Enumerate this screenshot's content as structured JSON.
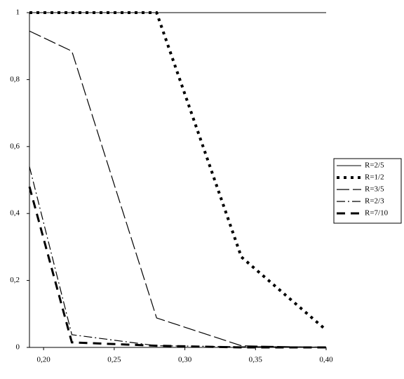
{
  "chart_data": {
    "type": "line",
    "x": [
      0.19,
      0.22,
      0.28,
      0.34,
      0.4
    ],
    "series": [
      {
        "name": "R=2/5",
        "color": "#000000",
        "line_style": "solid",
        "values": [
          1,
          1,
          1,
          1,
          1
        ]
      },
      {
        "name": "R=1/2",
        "color": "#000000",
        "line_style": "dotted",
        "values": [
          1,
          1,
          1,
          0.27,
          0.052
        ]
      },
      {
        "name": "R=3/5",
        "color": "#000000",
        "line_style": "dashed",
        "values": [
          0.945,
          0.885,
          0.088,
          0.005,
          0
        ]
      },
      {
        "name": "R=2/3",
        "color": "#000000",
        "line_style": "dashdot",
        "values": [
          0.54,
          0.038,
          0.005,
          0.002,
          0.001
        ]
      },
      {
        "name": "R=7/10",
        "color": "#000000",
        "line_style": "thickdash",
        "values": [
          0.48,
          0.015,
          0.005,
          0,
          0
        ]
      }
    ],
    "xlim": [
      0.19,
      0.4
    ],
    "ylim": [
      0,
      1
    ],
    "xticks": [
      {
        "value": 0.2,
        "label": "0,20"
      },
      {
        "value": 0.25,
        "label": "0,25"
      },
      {
        "value": 0.3,
        "label": "0,30"
      },
      {
        "value": 0.35,
        "label": "0,35"
      },
      {
        "value": 0.4,
        "label": "0,40"
      }
    ],
    "yticks": [
      0,
      {
        "value": 0.2,
        "label": "0,2"
      },
      {
        "value": 0.4,
        "label": "0,4"
      },
      {
        "value": 0.6,
        "label": "0,6"
      },
      {
        "value": 0.8,
        "label": "0,8"
      },
      1
    ],
    "legend": "right"
  }
}
